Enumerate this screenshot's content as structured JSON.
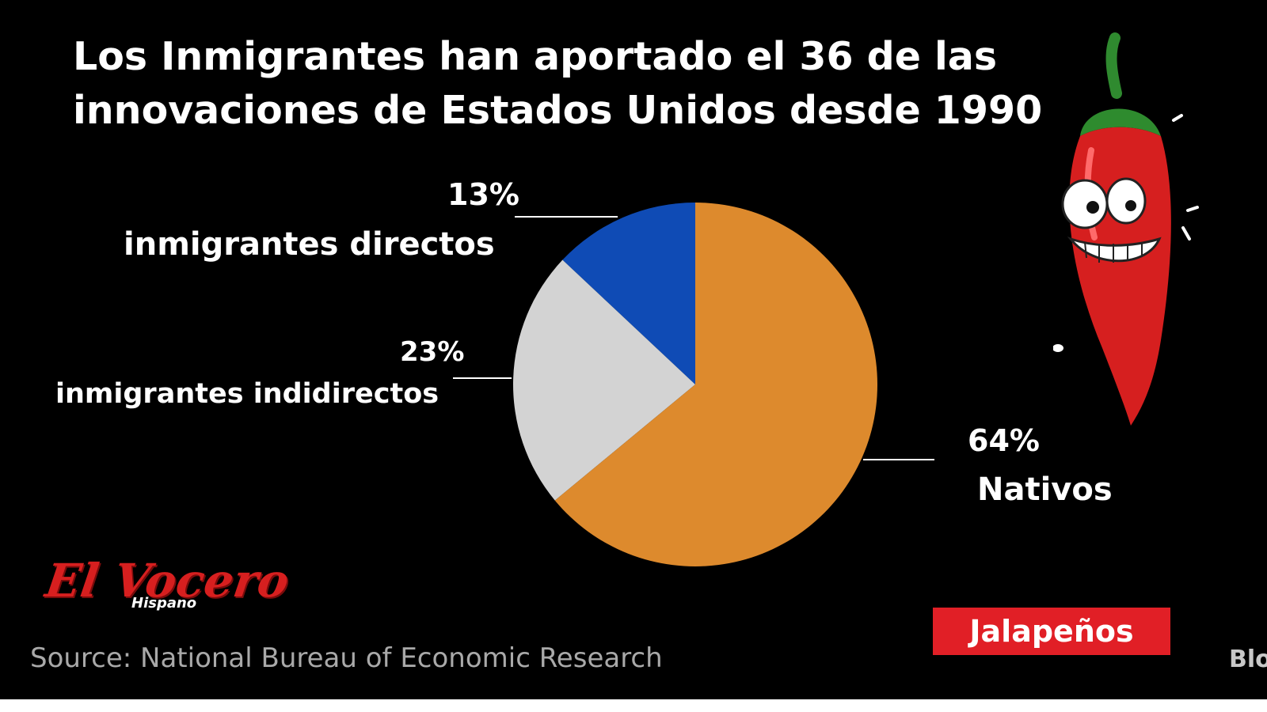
{
  "title": {
    "line1": "Los Inmigrantes han aportado el 36 de las",
    "line2": "innovaciones de Estados Unidos desde 1990"
  },
  "chart_data": {
    "type": "pie",
    "title": "Los Inmigrantes han aportado el 36 de las innovaciones de Estados Unidos desde 1990",
    "slices": [
      {
        "label": "inmigrantes directos",
        "value": 13,
        "value_label": "13%",
        "color": "#0f4bb5"
      },
      {
        "label": "inmigrantes indidirectos",
        "value": 23,
        "value_label": "23%",
        "color": "#d3d3d3"
      },
      {
        "label": "Nativos",
        "value": 64,
        "value_label": "64%",
        "color": "#dd8a2d"
      }
    ],
    "start": "12 o'clock",
    "direction": "counterclockwise"
  },
  "source": "Source: National Bureau of Economic Research",
  "corner_text": "Blo",
  "logo": {
    "main": "El Vocero",
    "sub": "Hispano"
  },
  "badge": "Jalapeños",
  "colors": {
    "background": "#000000",
    "badge": "#e11f26",
    "logo": "#d71f1f"
  },
  "icons": {
    "mascot": "chili-pepper-mascot-icon"
  }
}
